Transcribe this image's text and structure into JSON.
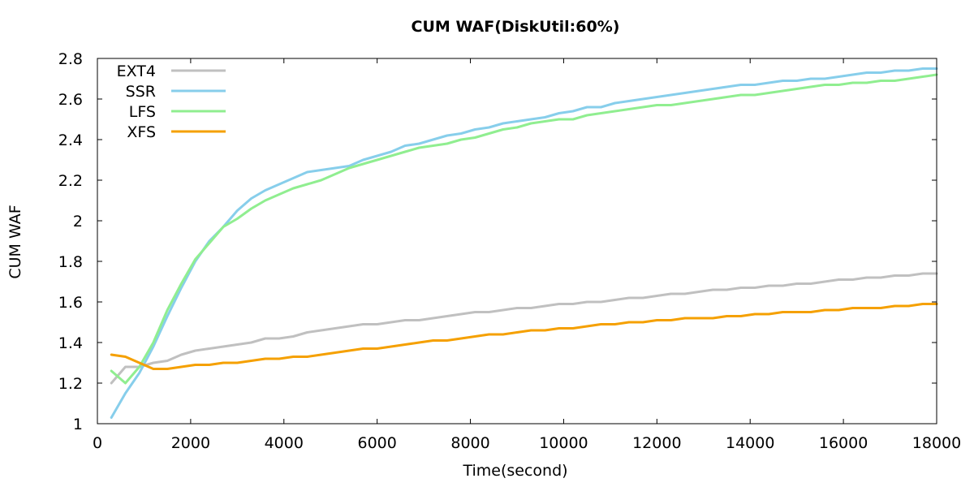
{
  "chart_data": {
    "type": "line",
    "title": "CUM WAF(DiskUtil:60%)",
    "xlabel": "Time(second)",
    "ylabel": "CUM WAF",
    "xlim": [
      0,
      18000
    ],
    "ylim": [
      1,
      2.8
    ],
    "xticks": [
      "0",
      "2000",
      "4000",
      "6000",
      "8000",
      "10000",
      "12000",
      "14000",
      "16000",
      "18000"
    ],
    "yticks": [
      "1",
      "1.2",
      "1.4",
      "1.6",
      "1.8",
      "2",
      "2.2",
      "2.4",
      "2.6",
      "2.8"
    ],
    "legend_position": "top-left",
    "grid": false,
    "series": [
      {
        "name": "EXT4",
        "color": "#c0c0c0",
        "x": [
          300,
          600,
          900,
          1200,
          1500,
          1800,
          2100,
          2400,
          2700,
          3000,
          3300,
          3600,
          3900,
          4200,
          4500,
          4800,
          5100,
          5400,
          5700,
          6000,
          6300,
          6600,
          6900,
          7200,
          7500,
          7800,
          8100,
          8400,
          8700,
          9000,
          9300,
          9600,
          9900,
          10200,
          10500,
          10800,
          11100,
          11400,
          11700,
          12000,
          12300,
          12600,
          12900,
          13200,
          13500,
          13800,
          14100,
          14400,
          14700,
          15000,
          15300,
          15600,
          15900,
          16200,
          16500,
          16800,
          17100,
          17400,
          17700,
          18000
        ],
        "values": [
          1.2,
          1.28,
          1.28,
          1.3,
          1.31,
          1.34,
          1.36,
          1.37,
          1.38,
          1.39,
          1.4,
          1.42,
          1.42,
          1.43,
          1.45,
          1.46,
          1.47,
          1.48,
          1.49,
          1.49,
          1.5,
          1.51,
          1.51,
          1.52,
          1.53,
          1.54,
          1.55,
          1.55,
          1.56,
          1.57,
          1.57,
          1.58,
          1.59,
          1.59,
          1.6,
          1.6,
          1.61,
          1.62,
          1.62,
          1.63,
          1.64,
          1.64,
          1.65,
          1.66,
          1.66,
          1.67,
          1.67,
          1.68,
          1.68,
          1.69,
          1.69,
          1.7,
          1.71,
          1.71,
          1.72,
          1.72,
          1.73,
          1.73,
          1.74,
          1.74
        ]
      },
      {
        "name": "SSR",
        "color": "#87ceeb",
        "x": [
          300,
          600,
          900,
          1200,
          1500,
          1800,
          2100,
          2400,
          2700,
          3000,
          3300,
          3600,
          3900,
          4200,
          4500,
          4800,
          5100,
          5400,
          5700,
          6000,
          6300,
          6600,
          6900,
          7200,
          7500,
          7800,
          8100,
          8400,
          8700,
          9000,
          9300,
          9600,
          9900,
          10200,
          10500,
          10800,
          11100,
          11400,
          11700,
          12000,
          12300,
          12600,
          12900,
          13200,
          13500,
          13800,
          14100,
          14400,
          14700,
          15000,
          15300,
          15600,
          15900,
          16200,
          16500,
          16800,
          17100,
          17400,
          17700,
          18000
        ],
        "values": [
          1.03,
          1.15,
          1.25,
          1.38,
          1.53,
          1.67,
          1.8,
          1.9,
          1.97,
          2.05,
          2.11,
          2.15,
          2.18,
          2.21,
          2.24,
          2.25,
          2.26,
          2.27,
          2.3,
          2.32,
          2.34,
          2.37,
          2.38,
          2.4,
          2.42,
          2.43,
          2.45,
          2.46,
          2.48,
          2.49,
          2.5,
          2.51,
          2.53,
          2.54,
          2.56,
          2.56,
          2.58,
          2.59,
          2.6,
          2.61,
          2.62,
          2.63,
          2.64,
          2.65,
          2.66,
          2.67,
          2.67,
          2.68,
          2.69,
          2.69,
          2.7,
          2.7,
          2.71,
          2.72,
          2.73,
          2.73,
          2.74,
          2.74,
          2.75,
          2.75
        ]
      },
      {
        "name": "LFS",
        "color": "#90ee90",
        "x": [
          300,
          600,
          900,
          1200,
          1500,
          1800,
          2100,
          2400,
          2700,
          3000,
          3300,
          3600,
          3900,
          4200,
          4500,
          4800,
          5100,
          5400,
          5700,
          6000,
          6300,
          6600,
          6900,
          7200,
          7500,
          7800,
          8100,
          8400,
          8700,
          9000,
          9300,
          9600,
          9900,
          10200,
          10500,
          10800,
          11100,
          11400,
          11700,
          12000,
          12300,
          12600,
          12900,
          13200,
          13500,
          13800,
          14100,
          14400,
          14700,
          15000,
          15300,
          15600,
          15900,
          16200,
          16500,
          16800,
          17100,
          17400,
          17700,
          18000
        ],
        "values": [
          1.26,
          1.2,
          1.28,
          1.4,
          1.56,
          1.69,
          1.81,
          1.89,
          1.97,
          2.01,
          2.06,
          2.1,
          2.13,
          2.16,
          2.18,
          2.2,
          2.23,
          2.26,
          2.28,
          2.3,
          2.32,
          2.34,
          2.36,
          2.37,
          2.38,
          2.4,
          2.41,
          2.43,
          2.45,
          2.46,
          2.48,
          2.49,
          2.5,
          2.5,
          2.52,
          2.53,
          2.54,
          2.55,
          2.56,
          2.57,
          2.57,
          2.58,
          2.59,
          2.6,
          2.61,
          2.62,
          2.62,
          2.63,
          2.64,
          2.65,
          2.66,
          2.67,
          2.67,
          2.68,
          2.68,
          2.69,
          2.69,
          2.7,
          2.71,
          2.72
        ]
      },
      {
        "name": "XFS",
        "color": "#f5a000",
        "x": [
          300,
          600,
          900,
          1200,
          1500,
          1800,
          2100,
          2400,
          2700,
          3000,
          3300,
          3600,
          3900,
          4200,
          4500,
          4800,
          5100,
          5400,
          5700,
          6000,
          6300,
          6600,
          6900,
          7200,
          7500,
          7800,
          8100,
          8400,
          8700,
          9000,
          9300,
          9600,
          9900,
          10200,
          10500,
          10800,
          11100,
          11400,
          11700,
          12000,
          12300,
          12600,
          12900,
          13200,
          13500,
          13800,
          14100,
          14400,
          14700,
          15000,
          15300,
          15600,
          15900,
          16200,
          16500,
          16800,
          17100,
          17400,
          17700,
          18000
        ],
        "values": [
          1.34,
          1.33,
          1.3,
          1.27,
          1.27,
          1.28,
          1.29,
          1.29,
          1.3,
          1.3,
          1.31,
          1.32,
          1.32,
          1.33,
          1.33,
          1.34,
          1.35,
          1.36,
          1.37,
          1.37,
          1.38,
          1.39,
          1.4,
          1.41,
          1.41,
          1.42,
          1.43,
          1.44,
          1.44,
          1.45,
          1.46,
          1.46,
          1.47,
          1.47,
          1.48,
          1.49,
          1.49,
          1.5,
          1.5,
          1.51,
          1.51,
          1.52,
          1.52,
          1.52,
          1.53,
          1.53,
          1.54,
          1.54,
          1.55,
          1.55,
          1.55,
          1.56,
          1.56,
          1.57,
          1.57,
          1.57,
          1.58,
          1.58,
          1.59,
          1.59
        ]
      }
    ]
  }
}
